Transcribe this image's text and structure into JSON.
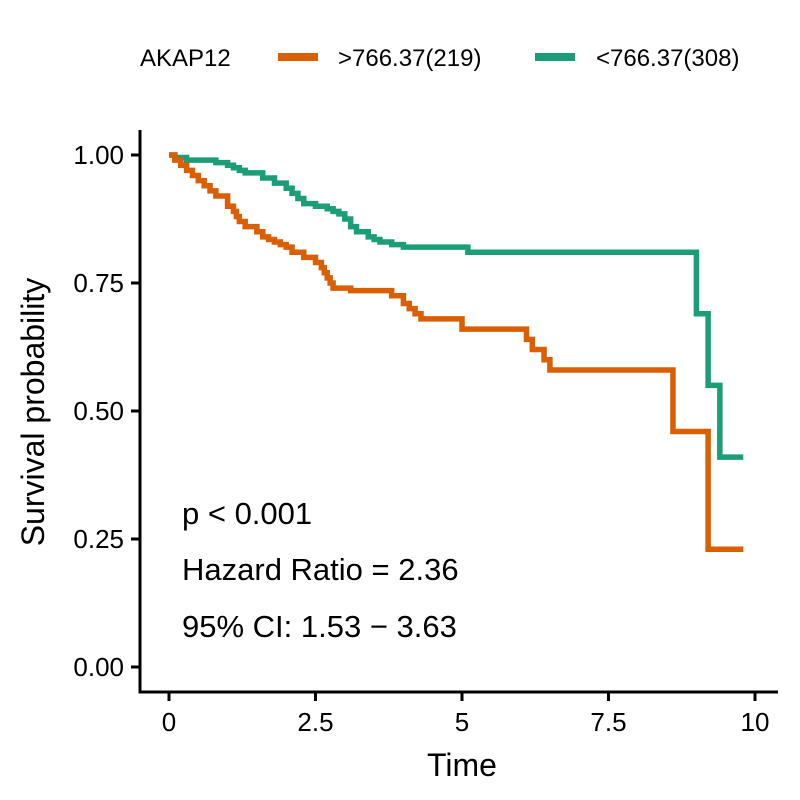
{
  "chart_data": {
    "type": "line",
    "step": true,
    "xlabel": "Time",
    "ylabel": "Survival probability",
    "xlim": [
      0,
      10
    ],
    "ylim": [
      0,
      1
    ],
    "xticks": [
      0,
      2.5,
      5,
      7.5,
      10
    ],
    "xtick_labels": [
      "0",
      "2.5",
      "5",
      "7.5",
      "10"
    ],
    "yticks": [
      0,
      0.25,
      0.5,
      0.75,
      1.0
    ],
    "ytick_labels": [
      "0.00",
      "0.25",
      "0.50",
      "0.75",
      "1.00"
    ],
    "grid": false,
    "legend": {
      "position": "top",
      "title": "AKAP12",
      "entries": [
        ">766.37(219)",
        "<766.37(308)"
      ]
    },
    "annotations": [
      "p < 0.001",
      "Hazard Ratio = 2.36",
      "95% CI: 1.53 − 3.63"
    ],
    "series": [
      {
        "name": ">766.37(219)",
        "color": "#D95F02",
        "x": [
          0,
          0.1,
          0.2,
          0.3,
          0.4,
          0.5,
          0.6,
          0.7,
          0.8,
          1.0,
          1.1,
          1.15,
          1.2,
          1.3,
          1.5,
          1.6,
          1.7,
          1.8,
          1.9,
          2.0,
          2.1,
          2.3,
          2.5,
          2.6,
          2.65,
          2.7,
          2.75,
          2.8,
          3.1,
          3.8,
          4.0,
          4.1,
          4.2,
          4.3,
          4.5,
          5.0,
          6.1,
          6.2,
          6.4,
          6.5,
          8.5,
          8.6,
          9.2,
          9.25,
          9.8
        ],
        "y": [
          1.0,
          0.99,
          0.98,
          0.97,
          0.96,
          0.95,
          0.94,
          0.93,
          0.92,
          0.9,
          0.89,
          0.88,
          0.87,
          0.86,
          0.85,
          0.84,
          0.835,
          0.83,
          0.825,
          0.82,
          0.81,
          0.8,
          0.79,
          0.78,
          0.77,
          0.76,
          0.75,
          0.74,
          0.735,
          0.725,
          0.71,
          0.7,
          0.69,
          0.68,
          0.68,
          0.66,
          0.64,
          0.62,
          0.6,
          0.58,
          0.58,
          0.46,
          0.23,
          0.23,
          0.23
        ]
      },
      {
        "name": "<766.37(308)",
        "color": "#1B9E77",
        "x": [
          0,
          0.1,
          0.3,
          0.8,
          1.0,
          1.1,
          1.2,
          1.3,
          1.6,
          1.8,
          2.0,
          2.1,
          2.2,
          2.3,
          2.5,
          2.7,
          2.8,
          2.9,
          3.0,
          3.1,
          3.2,
          3.4,
          3.5,
          3.6,
          3.8,
          4.0,
          5.0,
          5.1,
          8.9,
          9.0,
          9.2,
          9.25,
          9.4,
          9.8
        ],
        "y": [
          1.0,
          0.995,
          0.99,
          0.985,
          0.98,
          0.975,
          0.97,
          0.965,
          0.955,
          0.945,
          0.935,
          0.925,
          0.915,
          0.905,
          0.9,
          0.895,
          0.89,
          0.885,
          0.875,
          0.86,
          0.85,
          0.84,
          0.835,
          0.83,
          0.825,
          0.82,
          0.82,
          0.81,
          0.81,
          0.69,
          0.55,
          0.55,
          0.41,
          0.41
        ]
      }
    ]
  }
}
